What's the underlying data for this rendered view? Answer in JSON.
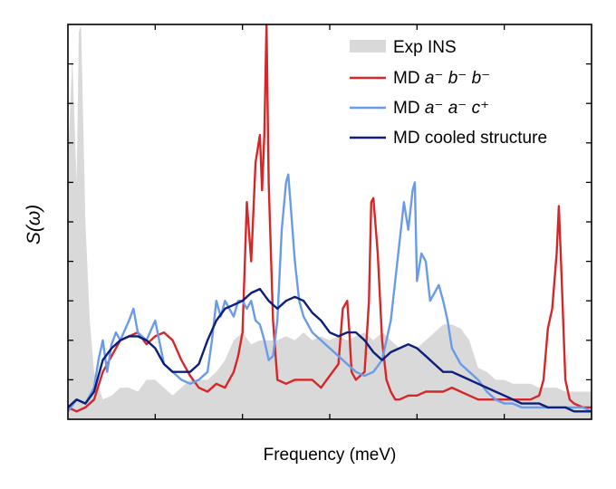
{
  "chart_data": {
    "type": "line",
    "title": "",
    "xlabel": "Frequency (meV)",
    "ylabel": "S(ω)",
    "xlim": [
      0,
      120
    ],
    "ylim": [
      0,
      1.0
    ],
    "x_ticks": [
      20,
      40,
      60,
      80,
      100
    ],
    "y_ticks": [
      0.1,
      0.2,
      0.3,
      0.4,
      0.5,
      0.6,
      0.7,
      0.8,
      0.9
    ],
    "tick_labels_shown": false,
    "grid": false,
    "legend_position": "top-right",
    "series": [
      {
        "name": "Exp INS",
        "style": "filled-area",
        "color": "#d9d9d9",
        "x": [
          0,
          1,
          2,
          2.5,
          3,
          3.5,
          4,
          5,
          6,
          8,
          10,
          12,
          14,
          16,
          18,
          20,
          22,
          24,
          26,
          28,
          30,
          32,
          34,
          36,
          38,
          40,
          42,
          44,
          46,
          48,
          50,
          52,
          54,
          56,
          58,
          60,
          62,
          64,
          66,
          68,
          70,
          72,
          74,
          76,
          78,
          80,
          82,
          84,
          86,
          88,
          90,
          92,
          94,
          96,
          98,
          100,
          102,
          104,
          106,
          108,
          110,
          112,
          114,
          116,
          118,
          120
        ],
        "y": [
          0.65,
          0.92,
          0.6,
          0.98,
          1.0,
          0.75,
          0.5,
          0.25,
          0.12,
          0.05,
          0.06,
          0.08,
          0.08,
          0.07,
          0.1,
          0.1,
          0.08,
          0.06,
          0.08,
          0.1,
          0.1,
          0.1,
          0.12,
          0.15,
          0.2,
          0.22,
          0.19,
          0.2,
          0.2,
          0.2,
          0.21,
          0.2,
          0.22,
          0.2,
          0.21,
          0.2,
          0.21,
          0.2,
          0.21,
          0.22,
          0.2,
          0.22,
          0.2,
          0.18,
          0.19,
          0.18,
          0.2,
          0.22,
          0.24,
          0.24,
          0.23,
          0.2,
          0.13,
          0.12,
          0.1,
          0.1,
          0.09,
          0.09,
          0.09,
          0.08,
          0.08,
          0.08,
          0.07,
          0.07,
          0.07,
          0.07
        ]
      },
      {
        "name": "MD a⁻b⁻b⁻",
        "style": "line",
        "color": "#d62728",
        "x": [
          0,
          2,
          4,
          6,
          8,
          10,
          12,
          14,
          16,
          18,
          20,
          22,
          24,
          26,
          28,
          30,
          32,
          34,
          36,
          38,
          39,
          40,
          41,
          42,
          43,
          44,
          44.5,
          45,
          45.5,
          46,
          47,
          48,
          50,
          52,
          54,
          56,
          58,
          60,
          62,
          63,
          64,
          64.5,
          65,
          66,
          68,
          69,
          69.5,
          70,
          71,
          72,
          73,
          74,
          75,
          76,
          78,
          80,
          82,
          84,
          86,
          88,
          90,
          92,
          94,
          96,
          98,
          100,
          102,
          104,
          106,
          108,
          109,
          110,
          111,
          112,
          112.5,
          113,
          114,
          115,
          116,
          118,
          120
        ],
        "y": [
          0.03,
          0.02,
          0.03,
          0.05,
          0.12,
          0.16,
          0.2,
          0.21,
          0.22,
          0.19,
          0.21,
          0.22,
          0.2,
          0.15,
          0.11,
          0.08,
          0.07,
          0.09,
          0.08,
          0.12,
          0.16,
          0.22,
          0.55,
          0.4,
          0.65,
          0.72,
          0.58,
          0.72,
          1.0,
          0.6,
          0.25,
          0.1,
          0.09,
          0.1,
          0.1,
          0.1,
          0.08,
          0.11,
          0.14,
          0.28,
          0.3,
          0.22,
          0.12,
          0.1,
          0.12,
          0.3,
          0.55,
          0.56,
          0.42,
          0.2,
          0.1,
          0.07,
          0.05,
          0.05,
          0.06,
          0.06,
          0.07,
          0.07,
          0.07,
          0.08,
          0.07,
          0.06,
          0.05,
          0.05,
          0.05,
          0.05,
          0.05,
          0.05,
          0.05,
          0.06,
          0.1,
          0.23,
          0.28,
          0.42,
          0.54,
          0.4,
          0.1,
          0.05,
          0.04,
          0.03,
          0.03
        ]
      },
      {
        "name": "MD a⁻a⁻c⁺",
        "style": "line",
        "color": "#6a9be6",
        "x": [
          0,
          2,
          4,
          6,
          7,
          8,
          9,
          10,
          11,
          12,
          14,
          15,
          16,
          18,
          20,
          22,
          24,
          26,
          28,
          30,
          32,
          33,
          34,
          35,
          36,
          37,
          38,
          39,
          40,
          41,
          42,
          43,
          44,
          45,
          46,
          47,
          48,
          49,
          50,
          50.5,
          51,
          52,
          53,
          54,
          56,
          58,
          60,
          62,
          64,
          66,
          68,
          70,
          72,
          74,
          76,
          77,
          78,
          79,
          79.5,
          80,
          81,
          82,
          83,
          84,
          85,
          86,
          87,
          88,
          90,
          92,
          94,
          96,
          98,
          100,
          102,
          104,
          106,
          108,
          110,
          112,
          114,
          116,
          118,
          120
        ],
        "y": [
          0.02,
          0.05,
          0.04,
          0.08,
          0.15,
          0.2,
          0.12,
          0.19,
          0.22,
          0.2,
          0.25,
          0.28,
          0.22,
          0.2,
          0.25,
          0.14,
          0.12,
          0.1,
          0.09,
          0.1,
          0.12,
          0.2,
          0.3,
          0.26,
          0.3,
          0.28,
          0.26,
          0.3,
          0.3,
          0.28,
          0.3,
          0.25,
          0.24,
          0.2,
          0.15,
          0.16,
          0.25,
          0.48,
          0.6,
          0.62,
          0.55,
          0.4,
          0.3,
          0.26,
          0.22,
          0.2,
          0.18,
          0.16,
          0.14,
          0.12,
          0.11,
          0.12,
          0.15,
          0.25,
          0.45,
          0.55,
          0.48,
          0.58,
          0.6,
          0.35,
          0.42,
          0.4,
          0.3,
          0.32,
          0.34,
          0.3,
          0.25,
          0.18,
          0.14,
          0.12,
          0.1,
          0.07,
          0.05,
          0.04,
          0.04,
          0.03,
          0.03,
          0.03,
          0.03,
          0.03,
          0.03,
          0.03,
          0.03,
          0.02
        ]
      },
      {
        "name": "MD cooled structure",
        "style": "line",
        "color": "#0d1f7a",
        "x": [
          0,
          2,
          4,
          6,
          8,
          10,
          12,
          14,
          16,
          18,
          20,
          22,
          24,
          26,
          28,
          30,
          32,
          34,
          36,
          38,
          40,
          42,
          44,
          46,
          48,
          50,
          52,
          54,
          56,
          58,
          60,
          62,
          64,
          66,
          68,
          70,
          72,
          74,
          76,
          78,
          80,
          82,
          84,
          86,
          88,
          90,
          92,
          94,
          96,
          98,
          100,
          102,
          104,
          106,
          108,
          110,
          112,
          114,
          116,
          118,
          120
        ],
        "y": [
          0.03,
          0.05,
          0.04,
          0.07,
          0.15,
          0.18,
          0.2,
          0.21,
          0.21,
          0.2,
          0.18,
          0.14,
          0.12,
          0.12,
          0.12,
          0.14,
          0.2,
          0.25,
          0.28,
          0.29,
          0.3,
          0.32,
          0.33,
          0.3,
          0.28,
          0.3,
          0.31,
          0.3,
          0.27,
          0.25,
          0.22,
          0.21,
          0.22,
          0.22,
          0.2,
          0.17,
          0.15,
          0.17,
          0.18,
          0.19,
          0.18,
          0.16,
          0.14,
          0.12,
          0.12,
          0.11,
          0.1,
          0.09,
          0.08,
          0.07,
          0.06,
          0.05,
          0.04,
          0.04,
          0.04,
          0.03,
          0.03,
          0.03,
          0.02,
          0.02,
          0.02
        ]
      }
    ],
    "legend": {
      "exp": "Exp INS",
      "md1_prefix": "MD ",
      "md1_formula": "a⁻ b⁻ b⁻",
      "md2_prefix": "MD ",
      "md2_formula": "a⁻ a⁻ c⁺",
      "md3": "MD cooled structure"
    }
  }
}
